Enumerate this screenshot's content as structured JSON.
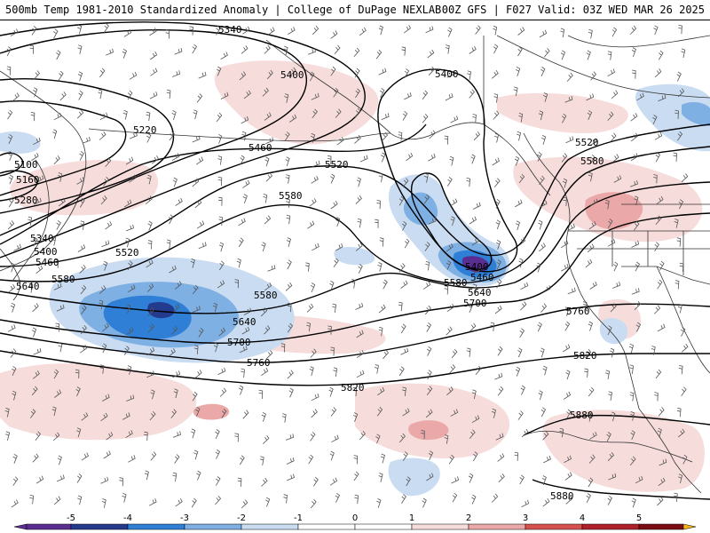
{
  "header": {
    "title_left": "500mb Temp 1981-2010 Standardized Anomaly | College of DuPage NEXLAB",
    "title_right": "00Z GFS | F027 Valid: 03Z WED MAR 26 2025"
  },
  "colors": {
    "anom_neg5": "#5a2d91",
    "anom_neg4": "#243a8c",
    "anom_neg3": "#2f7fd6",
    "anom_neg2": "#7fb0e4",
    "anom_neg1": "#c9dcf1",
    "anom_0": "#ffffff",
    "anom_pos1": "#f7dcdc",
    "anom_pos2": "#eba8a8",
    "anom_pos3": "#d65050",
    "anom_pos4": "#b0202a",
    "anom_pos5": "#7a0c12",
    "anom_pos6": "#f2b21b",
    "contour": "#000000",
    "coastline": "#333333",
    "barb": "#555555"
  },
  "colorbar": {
    "ticks": [
      "-5",
      "-4",
      "-3",
      "-2",
      "-1",
      "0",
      "1",
      "2",
      "3",
      "4",
      "5"
    ]
  },
  "contours": {
    "c5100": "5100",
    "c5160": "5160",
    "c5220": "5220",
    "c5280": "5280",
    "c5340": "5340",
    "c5400": "5400",
    "c5460": "5460",
    "c5520": "5520",
    "c5580": "5580",
    "c5640": "5640",
    "c5700": "5700",
    "c5760": "5760",
    "c5820": "5820",
    "c5880": "5880"
  }
}
